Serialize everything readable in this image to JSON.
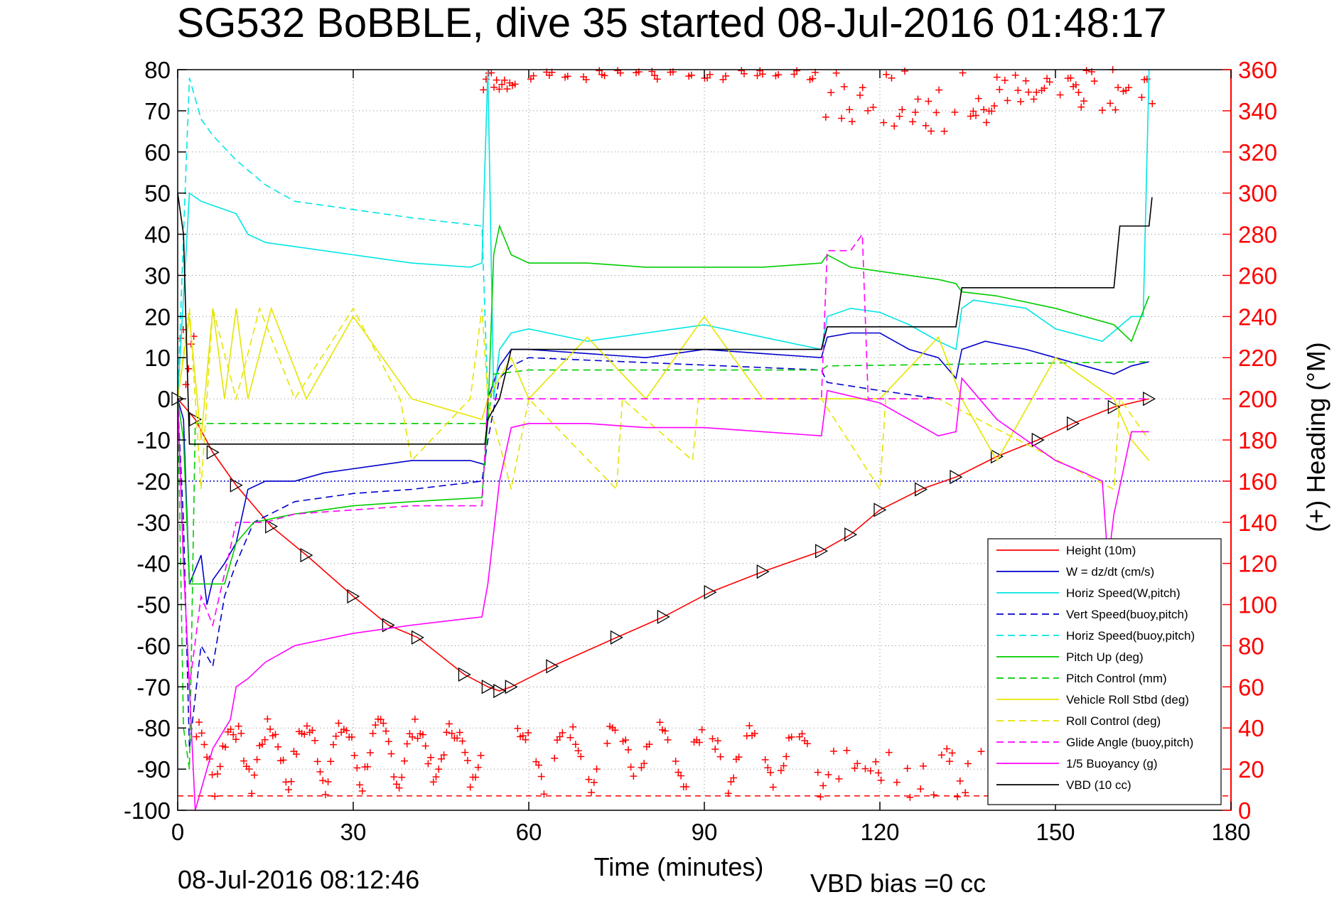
{
  "chart_data": {
    "type": "line",
    "title": "SG532 BoBBLE, dive 35 started 08-Jul-2016 01:48:17",
    "xlabel": "Time (minutes)",
    "ylabel_right": "(+) Heading (°M)",
    "xlim": [
      0,
      180
    ],
    "ylim": [
      -100,
      80
    ],
    "ylim_right": [
      0,
      360
    ],
    "xticks": [
      0,
      30,
      60,
      90,
      120,
      150,
      180
    ],
    "yticks": [
      80,
      70,
      60,
      50,
      40,
      30,
      20,
      10,
      0,
      -10,
      -20,
      -30,
      -40,
      -50,
      -60,
      -70,
      -80,
      -90,
      -100
    ],
    "yticks_right": [
      360,
      340,
      320,
      300,
      280,
      260,
      240,
      220,
      200,
      180,
      160,
      140,
      120,
      100,
      80,
      60,
      40,
      20,
      0
    ],
    "grid": true,
    "legend_position": "bottom-right",
    "footer_left": "08-Jul-2016 08:12:46",
    "footer_right": "VBD bias =0 cc",
    "colors": {
      "red": "#ff0000",
      "blue": "#0000cc",
      "cyan": "#00e5e5",
      "green": "#00cc00",
      "yellow": "#e5e500",
      "magenta": "#ff00ff",
      "black": "#000000"
    },
    "series": [
      {
        "name": "Height (10m)",
        "color": "#ff0000",
        "dash": "solid",
        "x": [
          0,
          3,
          6,
          10,
          16,
          22,
          30,
          36,
          41,
          49,
          53,
          55,
          57,
          64,
          75,
          83,
          91,
          100,
          110,
          115,
          120,
          127,
          133,
          140,
          147,
          153,
          160,
          166
        ],
        "y": [
          0,
          -5,
          -13,
          -21,
          -31,
          -38,
          -48,
          -55,
          -58,
          -67,
          -70,
          -71,
          -70,
          -65,
          -58,
          -53,
          -47,
          -42,
          -37,
          -33,
          -27,
          -22,
          -19,
          -14,
          -10,
          -6,
          -2,
          0
        ],
        "markers": true
      },
      {
        "name": "W = dz/dt (cm/s)",
        "color": "#0000cc",
        "dash": "solid",
        "x": [
          0,
          1,
          2,
          4,
          5,
          6,
          8,
          10,
          12,
          15,
          20,
          25,
          30,
          40,
          50,
          52.5,
          53,
          55,
          57,
          60,
          70,
          80,
          90,
          100,
          110,
          111,
          115,
          120,
          125,
          130,
          133,
          134,
          138,
          145,
          150,
          155,
          160,
          163,
          166
        ],
        "y": [
          0,
          -5,
          -45,
          -38,
          -50,
          -44,
          -40,
          -35,
          -22,
          -20,
          -20,
          -18,
          -17,
          -15,
          -15,
          -16,
          0,
          8,
          12,
          12,
          11,
          10,
          12,
          11,
          10,
          15,
          16,
          16,
          12,
          10,
          5,
          12,
          14,
          12,
          10,
          8,
          6,
          8,
          9
        ]
      },
      {
        "name": "Horiz Speed(W,pitch)",
        "color": "#00e5e5",
        "dash": "solid",
        "x": [
          0,
          2,
          4,
          6,
          8,
          10,
          12,
          15,
          20,
          30,
          40,
          50,
          52,
          53,
          54,
          55,
          57,
          60,
          70,
          80,
          90,
          100,
          110,
          111,
          115,
          120,
          125,
          130,
          133,
          134,
          136,
          145,
          150,
          158,
          163,
          165,
          166
        ],
        "y": [
          0,
          50,
          48,
          47,
          46,
          45,
          40,
          38,
          37,
          35,
          33,
          32,
          33,
          80,
          0,
          12,
          16,
          17,
          14,
          16,
          18,
          15,
          12,
          20,
          22,
          21,
          18,
          14,
          12,
          22,
          24,
          22,
          17,
          14,
          20,
          20,
          80
        ]
      },
      {
        "name": "Vert Speed(buoy,pitch)",
        "color": "#0000cc",
        "dash": "dash",
        "x": [
          0,
          1,
          2,
          4,
          6,
          8,
          10,
          13,
          20,
          30,
          40,
          52,
          53,
          55,
          57,
          60,
          110,
          111,
          120,
          130
        ],
        "y": [
          0,
          -30,
          -85,
          -60,
          -65,
          -48,
          -40,
          -30,
          -25,
          -23,
          -22,
          -20,
          -10,
          5,
          8,
          10,
          7,
          4,
          2,
          0
        ]
      },
      {
        "name": "Horiz Speed(buoy,pitch)",
        "color": "#00e5e5",
        "dash": "dash",
        "x": [
          0,
          1,
          2,
          4,
          6,
          10,
          15,
          20,
          30,
          40,
          52,
          53
        ],
        "y": [
          0,
          40,
          78,
          68,
          64,
          58,
          52,
          48,
          46,
          44,
          42,
          0
        ]
      },
      {
        "name": "Pitch Up (deg)",
        "color": "#00cc00",
        "dash": "solid",
        "x": [
          0,
          1,
          2,
          4,
          6,
          8,
          10,
          13,
          20,
          30,
          40,
          52,
          53,
          54,
          55,
          57,
          60,
          70,
          80,
          90,
          100,
          110,
          111,
          115,
          120,
          130,
          133,
          134,
          140,
          150,
          160,
          163,
          166
        ],
        "y": [
          0,
          -10,
          -45,
          -45,
          -45,
          -45,
          -35,
          -30,
          -28,
          -26,
          -25,
          -24,
          -5,
          35,
          42,
          35,
          33,
          33,
          32,
          32,
          32,
          33,
          35,
          32,
          31,
          29,
          28,
          26,
          25,
          22,
          18,
          14,
          25
        ]
      },
      {
        "name": "Pitch Control (mm)",
        "color": "#00cc00",
        "dash": "dash",
        "x": [
          0,
          1,
          2,
          3,
          53,
          54,
          60,
          110,
          111,
          166
        ],
        "y": [
          0,
          -80,
          -90,
          -6,
          -6,
          6,
          7,
          7,
          8,
          9
        ]
      },
      {
        "name": "Vehicle Roll Stbd (deg)",
        "color": "#e5e500",
        "dash": "solid",
        "x": [
          0,
          2,
          4,
          6,
          8,
          10,
          12,
          16,
          22,
          30,
          40,
          52,
          53,
          57,
          60,
          70,
          80,
          90,
          100,
          110,
          120,
          130,
          134,
          140,
          150,
          160,
          163,
          166
        ],
        "y": [
          0,
          20,
          -10,
          22,
          0,
          22,
          0,
          22,
          0,
          20,
          0,
          -5,
          0,
          10,
          0,
          15,
          0,
          20,
          0,
          0,
          0,
          15,
          0,
          -15,
          10,
          0,
          -10,
          -15
        ]
      },
      {
        "name": "Roll Control (deg)",
        "color": "#e5e500",
        "dash": "dash",
        "x": [
          0,
          2,
          4,
          6,
          10,
          14,
          20,
          30,
          38,
          40,
          50,
          52,
          53,
          57,
          60,
          75,
          76,
          88,
          89,
          110,
          120,
          121,
          130,
          160,
          161,
          166
        ],
        "y": [
          0,
          22,
          -22,
          22,
          0,
          22,
          0,
          22,
          0,
          -15,
          0,
          22,
          0,
          -22,
          0,
          -22,
          0,
          -15,
          0,
          0,
          -22,
          0,
          0,
          -22,
          0,
          -10
        ]
      },
      {
        "name": "Glide Angle (buoy,pitch)",
        "color": "#ff00ff",
        "dash": "dash",
        "x": [
          0,
          1,
          2,
          4,
          6,
          10,
          15,
          20,
          30,
          40,
          52,
          53,
          55,
          110,
          111,
          115,
          117,
          118,
          119,
          166
        ],
        "y": [
          0,
          -40,
          -70,
          -48,
          -55,
          -30,
          -30,
          -28,
          -27,
          -26,
          -26,
          0,
          0,
          0,
          36,
          36,
          40,
          0,
          0,
          0
        ]
      },
      {
        "name": "1/5 Buoyancy (g)",
        "color": "#ff00ff",
        "dash": "solid",
        "x": [
          0,
          1,
          3,
          6,
          9,
          10,
          12,
          15,
          20,
          30,
          40,
          52,
          53,
          55,
          57,
          60,
          70,
          80,
          90,
          100,
          110,
          111,
          120,
          125,
          130,
          133,
          134,
          140,
          145,
          150,
          155,
          158,
          159,
          160,
          163,
          166
        ],
        "y": [
          0,
          -40,
          -100,
          -85,
          -78,
          -70,
          -68,
          -64,
          -60,
          -57,
          -55,
          -53,
          -45,
          -20,
          -7,
          -6,
          -6,
          -7,
          -7,
          -8,
          -9,
          2,
          -1,
          -5,
          -9,
          -8,
          5,
          -5,
          -10,
          -15,
          -18,
          -20,
          -40,
          -28,
          -8,
          -8
        ]
      },
      {
        "name": "VBD (10 cc)",
        "color": "#000000",
        "dash": "solid",
        "x": [
          0,
          0.5,
          1,
          2,
          52.5,
          53,
          55,
          57,
          110,
          111,
          133,
          134,
          160,
          161,
          166,
          166.5
        ],
        "y": [
          50,
          45,
          40,
          -11,
          -11,
          -5,
          0,
          12,
          12,
          17.5,
          17.5,
          27,
          27,
          42,
          42,
          49
        ]
      }
    ],
    "reference_lines": [
      {
        "color": "#ff0000",
        "dash": "dash",
        "y_right": 7
      },
      {
        "color": "#0000cc",
        "dash": "dot",
        "y": -20
      }
    ],
    "heading_scatter": {
      "color": "#ff0000",
      "marker": "+",
      "description_values_right_axis": true
    }
  }
}
